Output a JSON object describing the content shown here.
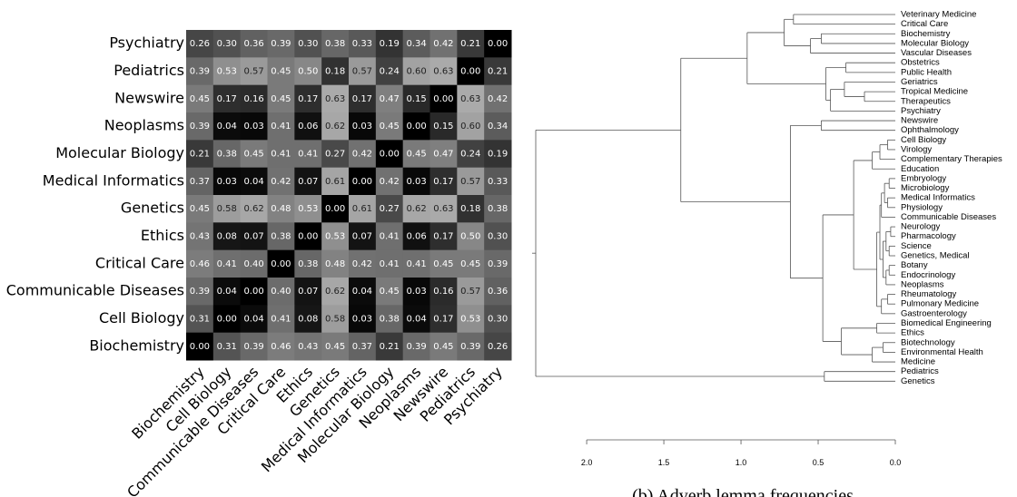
{
  "chart_data": [
    {
      "type": "heatmap",
      "rows": [
        "Psychiatry",
        "Pediatrics",
        "Newswire",
        "Neoplasms",
        "Molecular Biology",
        "Medical Informatics",
        "Genetics",
        "Ethics",
        "Critical Care",
        "Communicable Diseases",
        "Cell Biology",
        "Biochemistry"
      ],
      "columns": [
        "Biochemistry",
        "Cell Biology",
        "Communicable Diseases",
        "Critical Care",
        "Ethics",
        "Genetics",
        "Medical Informatics",
        "Molecular Biology",
        "Neoplasms",
        "Newswire",
        "Pediatrics",
        "Psychiatry"
      ],
      "values": [
        [
          0.26,
          0.3,
          0.36,
          0.39,
          0.3,
          0.38,
          0.33,
          0.19,
          0.34,
          0.42,
          0.21,
          0.0
        ],
        [
          0.39,
          0.53,
          0.57,
          0.45,
          0.5,
          0.18,
          0.57,
          0.24,
          0.6,
          0.63,
          0.0,
          0.21
        ],
        [
          0.45,
          0.17,
          0.16,
          0.45,
          0.17,
          0.63,
          0.17,
          0.47,
          0.15,
          0.0,
          0.63,
          0.42
        ],
        [
          0.39,
          0.04,
          0.03,
          0.41,
          0.06,
          0.62,
          0.03,
          0.45,
          0.0,
          0.15,
          0.6,
          0.34
        ],
        [
          0.21,
          0.38,
          0.45,
          0.41,
          0.41,
          0.27,
          0.42,
          0.0,
          0.45,
          0.47,
          0.24,
          0.19
        ],
        [
          0.37,
          0.03,
          0.04,
          0.42,
          0.07,
          0.61,
          0.0,
          0.42,
          0.03,
          0.17,
          0.57,
          0.33
        ],
        [
          0.45,
          0.58,
          0.62,
          0.48,
          0.53,
          0.0,
          0.61,
          0.27,
          0.62,
          0.63,
          0.18,
          0.38
        ],
        [
          0.43,
          0.08,
          0.07,
          0.38,
          0.0,
          0.53,
          0.07,
          0.41,
          0.06,
          0.17,
          0.5,
          0.3
        ],
        [
          0.46,
          0.41,
          0.4,
          0.0,
          0.38,
          0.48,
          0.42,
          0.41,
          0.41,
          0.45,
          0.45,
          0.39
        ],
        [
          0.39,
          0.04,
          0.0,
          0.4,
          0.07,
          0.62,
          0.04,
          0.45,
          0.03,
          0.16,
          0.57,
          0.36
        ],
        [
          0.31,
          0.0,
          0.04,
          0.41,
          0.08,
          0.58,
          0.03,
          0.38,
          0.04,
          0.17,
          0.53,
          0.3
        ],
        [
          0.0,
          0.31,
          0.39,
          0.46,
          0.43,
          0.45,
          0.37,
          0.21,
          0.39,
          0.45,
          0.39,
          0.26
        ]
      ],
      "value_labels": [
        [
          "0.26",
          "0.30",
          "0.36",
          "0.39",
          "0.30",
          "0.38",
          "0.33",
          "0.19",
          "0.34",
          "0.42",
          "0.21",
          "0.00"
        ],
        [
          "0.39",
          "0.53",
          "0.57",
          "0.45",
          "0.50",
          "0.18",
          "0.57",
          "0.24",
          "0.60",
          "0.63",
          "0.00",
          "0.21"
        ],
        [
          "0.45",
          "0.17",
          "0.16",
          "0.45",
          "0.17",
          "0.63",
          "0.17",
          "0.47",
          "0.15",
          "0.00",
          "0.63",
          "0.42"
        ],
        [
          "0.39",
          "0.04",
          "0.03",
          "0.41",
          "0.06",
          "0.62",
          "0.03",
          "0.45",
          "0.00",
          "0.15",
          "0.60",
          "0.34"
        ],
        [
          "0.21",
          "0.38",
          "0.45",
          "0.41",
          "0.41",
          "0.27",
          "0.42",
          "0.00",
          "0.45",
          "0.47",
          "0.24",
          "0.19"
        ],
        [
          "0.37",
          "0.03",
          "0.04",
          "0.42",
          "0.07",
          "0.61",
          "0.00",
          "0.42",
          "0.03",
          "0.17",
          "0.57",
          "0.33"
        ],
        [
          "0.45",
          "0.58",
          "0.62",
          "0.48",
          "0.53",
          "0.00",
          "0.61",
          "0.27",
          "0.62",
          "0.63",
          "0.18",
          "0.38"
        ],
        [
          "0.43",
          "0.08",
          "0.07",
          "0.38",
          "0.00",
          "0.53",
          "0.07",
          "0.41",
          "0.06",
          "0.17",
          "0.50",
          "0.30"
        ],
        [
          "0.46",
          "0.41",
          "0.40",
          "0.00",
          "0.38",
          "0.48",
          "0.42",
          "0.41",
          "0.41",
          "0.45",
          "0.45",
          "0.39"
        ],
        [
          "0.39",
          "0.04",
          "0.00",
          "0.40",
          "0.07",
          "0.62",
          "0.04",
          "0.45",
          "0.03",
          "0.16",
          "0.57",
          "0.36"
        ],
        [
          "0.31",
          "0.00",
          "0.04",
          "0.41",
          "0.08",
          "0.58",
          "0.03",
          "0.38",
          "0.04",
          "0.17",
          "0.53",
          "0.30"
        ],
        [
          "0.00",
          "0.31",
          "0.39",
          "0.46",
          "0.43",
          "0.45",
          "0.37",
          "0.21",
          "0.39",
          "0.45",
          "0.39",
          "0.26"
        ]
      ]
    },
    {
      "type": "dendrogram",
      "xlim": [
        2.33,
        0
      ],
      "xticks": [
        {
          "value": 2,
          "label": "2.0"
        },
        {
          "value": 1.5,
          "label": "1.5"
        },
        {
          "value": 1,
          "label": "1.0"
        },
        {
          "value": 0.5,
          "label": "0.5"
        },
        {
          "value": 0,
          "label": "0.0"
        }
      ],
      "tree": {
        "height": 2.33,
        "children": [
          {
            "height": 1.39,
            "children": [
              {
                "height": 0.96,
                "children": [
                  {
                    "height": 0.72,
                    "children": [
                      {
                        "height": 0.66,
                        "children": [
                          "Veterinary Medicine",
                          "Critical Care"
                        ]
                      },
                      {
                        "height": 0.55,
                        "children": [
                          {
                            "height": 0.48,
                            "children": [
                              "Biochemistry",
                              "Molecular Biology"
                            ]
                          },
                          "Vascular Diseases"
                        ]
                      }
                    ]
                  },
                  {
                    "height": 0.45,
                    "children": [
                      {
                        "height": 0.32,
                        "children": [
                          "Obstetrics",
                          "Public Health"
                        ]
                      },
                      {
                        "height": 0.42,
                        "children": [
                          {
                            "height": 0.33,
                            "children": [
                              "Geriatrics",
                              {
                                "height": 0.2,
                                "children": [
                                  "Tropical Medicine",
                                  "Therapeutics"
                                ]
                              }
                            ]
                          },
                          "Psychiatry"
                        ]
                      }
                    ]
                  }
                ]
              },
              {
                "height": 0.68,
                "children": [
                  {
                    "height": 0.48,
                    "children": [
                      "Newswire",
                      "Ophthalmology"
                    ]
                  },
                  {
                    "height": 0.47,
                    "children": [
                      {
                        "height": 0.27,
                        "children": [
                          {
                            "height": 0.15,
                            "children": [
                              {
                                "height": 0.1,
                                "children": [
                                  {
                                    "height": 0.05,
                                    "children": [
                                      "Cell Biology",
                                      "Virology"
                                    ]
                                  },
                                  "Complementary Therapies"
                                ]
                              },
                              "Education"
                            ]
                          },
                          {
                            "height": 0.12,
                            "children": [
                              {
                                "height": 0.1,
                                "children": [
                                  {
                                    "height": 0.09,
                                    "children": [
                                      {
                                        "height": 0.07,
                                        "children": [
                                          {
                                            "height": 0.04,
                                            "children": [
                                              "Embryology",
                                              "Microbiology"
                                            ]
                                          },
                                          {
                                            "height": 0.05,
                                            "children": [
                                              "Medical Informatics",
                                              "Physiology"
                                            ]
                                          }
                                        ]
                                      },
                                      "Communicable Diseases"
                                    ]
                                  },
                                  {
                                    "height": 0.08,
                                    "children": [
                                      {
                                        "height": 0.06,
                                        "children": [
                                          {
                                            "height": 0.03,
                                            "children": [
                                              "Neurology",
                                              "Pharmacology"
                                            ]
                                          },
                                          {
                                            "height": 0.04,
                                            "children": [
                                              "Science",
                                              "Genetics, Medical"
                                            ]
                                          }
                                        ]
                                      },
                                      {
                                        "height": 0.06,
                                        "children": [
                                          {
                                            "height": 0.04,
                                            "children": [
                                              "Botany",
                                              "Endocrinology"
                                            ]
                                          },
                                          "Neoplasms"
                                        ]
                                      }
                                    ]
                                  }
                                ]
                              },
                              {
                                "height": 0.09,
                                "children": [
                                  {
                                    "height": 0.05,
                                    "children": [
                                      "Rheumatology",
                                      "Pulmonary Medicine"
                                    ]
                                  },
                                  "Gastroenterology"
                                ]
                              }
                            ]
                          }
                        ]
                      },
                      {
                        "height": 0.35,
                        "children": [
                          {
                            "height": 0.12,
                            "children": [
                              "Biomedical Engineering",
                              "Ethics"
                            ]
                          },
                          {
                            "height": 0.15,
                            "children": [
                              {
                                "height": 0.08,
                                "children": [
                                  "Biotechnology",
                                  "Environmental Health"
                                ]
                              },
                              "Medicine"
                            ]
                          }
                        ]
                      }
                    ]
                  }
                ]
              }
            ]
          },
          {
            "height": 0.46,
            "children": [
              "Pediatrics",
              "Genetics"
            ]
          }
        ]
      }
    }
  ],
  "caption": "(b) Adverb lemma frequencies"
}
